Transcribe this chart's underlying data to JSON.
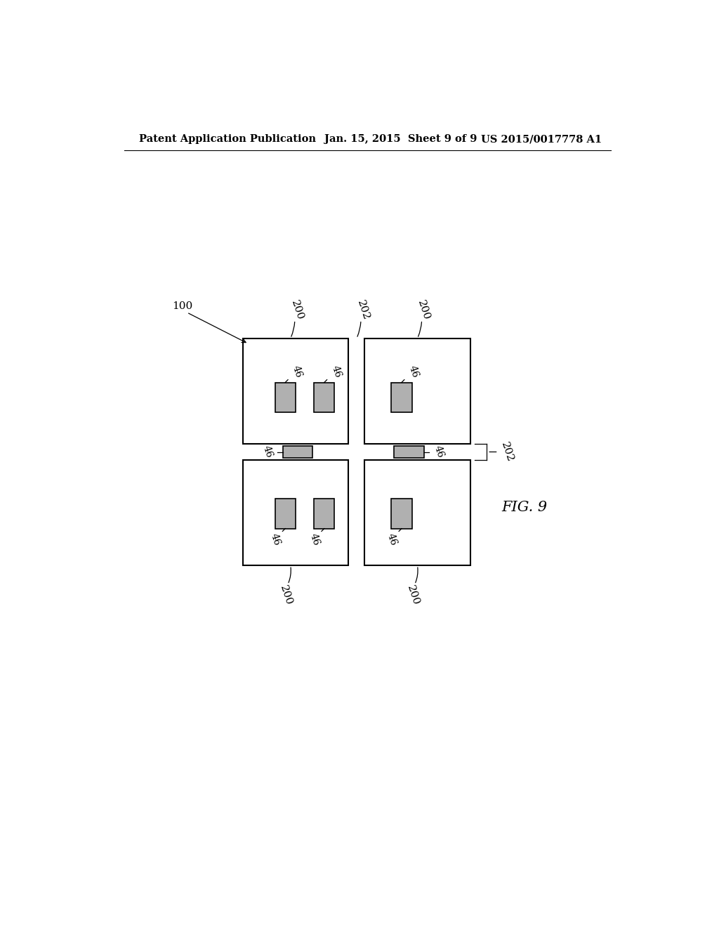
{
  "background_color": "#ffffff",
  "header_left": "Patent Application Publication",
  "header_center": "Jan. 15, 2015  Sheet 9 of 9",
  "header_right": "US 2015/0017778 A1",
  "fig_label": "FIG. 9",
  "label_100": "100",
  "label_200": "200",
  "label_202": "202",
  "label_46": "46",
  "die_color": "#ffffff",
  "die_edge_color": "#000000",
  "rect_fill_color": "#b0b0b0",
  "rect_edge_color": "#000000",
  "line_color": "#000000"
}
